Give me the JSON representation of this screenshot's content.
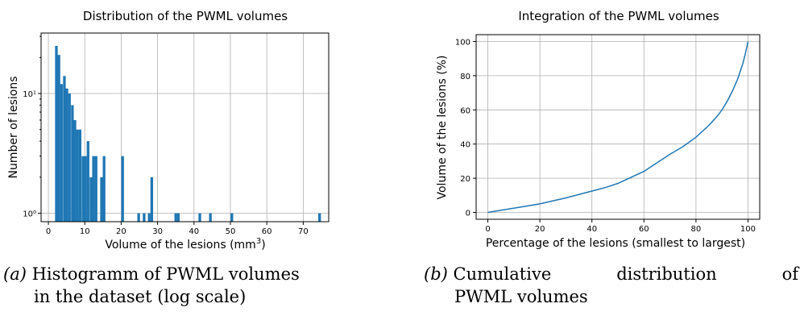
{
  "chart_data": [
    {
      "type": "bar",
      "title": "Distribution of the PWML volumes",
      "xlabel": "Volume of the lesions (mm",
      "xlabel_sup": "3",
      "ylabel": "Number of lesions",
      "yscale": "log",
      "xlim": [
        -2,
        77
      ],
      "ylim": [
        0.85,
        32
      ],
      "x_ticks": [
        0,
        10,
        20,
        30,
        40,
        50,
        60,
        70
      ],
      "x_tick_labels": [
        "0",
        "10",
        "20",
        "30",
        "40",
        "50",
        "60",
        "70"
      ],
      "y_ticks": [
        1,
        10
      ],
      "y_tick_labels": [
        "10⁰",
        "10¹"
      ],
      "grid": true,
      "bin_width": 0.73,
      "bars": [
        {
          "x": 2.2,
          "y": 25
        },
        {
          "x": 2.9,
          "y": 21
        },
        {
          "x": 3.6,
          "y": 12
        },
        {
          "x": 4.4,
          "y": 14
        },
        {
          "x": 5.1,
          "y": 11
        },
        {
          "x": 5.8,
          "y": 10
        },
        {
          "x": 6.6,
          "y": 8
        },
        {
          "x": 7.3,
          "y": 6
        },
        {
          "x": 8.0,
          "y": 5
        },
        {
          "x": 8.7,
          "y": 5
        },
        {
          "x": 9.5,
          "y": 3
        },
        {
          "x": 10.2,
          "y": 3
        },
        {
          "x": 10.9,
          "y": 4
        },
        {
          "x": 11.7,
          "y": 2
        },
        {
          "x": 12.4,
          "y": 3
        },
        {
          "x": 13.1,
          "y": 3
        },
        {
          "x": 14.6,
          "y": 2
        },
        {
          "x": 15.3,
          "y": 3
        },
        {
          "x": 20.4,
          "y": 3
        },
        {
          "x": 24.8,
          "y": 1
        },
        {
          "x": 26.3,
          "y": 1
        },
        {
          "x": 27.7,
          "y": 1
        },
        {
          "x": 28.4,
          "y": 2
        },
        {
          "x": 35.0,
          "y": 1
        },
        {
          "x": 35.7,
          "y": 1
        },
        {
          "x": 41.6,
          "y": 1
        },
        {
          "x": 44.5,
          "y": 1
        },
        {
          "x": 50.4,
          "y": 1
        },
        {
          "x": 74.5,
          "y": 1
        }
      ]
    },
    {
      "type": "line",
      "title": "Integration of the PWML volumes",
      "xlabel": "Percentage of the lesions (smallest to largest)",
      "ylabel": "Volume of the lesions (%)",
      "xlim": [
        -4.5,
        104.5
      ],
      "ylim": [
        -4,
        104
      ],
      "x_ticks": [
        0,
        20,
        40,
        60,
        80,
        100
      ],
      "x_tick_labels": [
        "0",
        "20",
        "40",
        "60",
        "80",
        "100"
      ],
      "y_ticks": [
        0,
        20,
        40,
        60,
        80,
        100
      ],
      "y_tick_labels": [
        "0",
        "20",
        "40",
        "60",
        "80",
        "100"
      ],
      "grid": true,
      "color": "#1f77b4",
      "series": [
        {
          "x": [
            0,
            10,
            20,
            30,
            40,
            45,
            50,
            55,
            60,
            65,
            70,
            75,
            80,
            85,
            88,
            90,
            92,
            94,
            96,
            98,
            99,
            100
          ],
          "y": [
            0,
            2.5,
            5,
            8.5,
            12.5,
            14.5,
            17,
            20.5,
            24,
            29,
            34,
            38.5,
            44,
            51,
            56,
            60,
            65,
            71,
            78,
            87,
            93,
            100
          ]
        }
      ]
    }
  ],
  "captions": {
    "a": {
      "tag": "(a)",
      "line1": "Histogramm of PWML volumes",
      "line2": "in the dataset (log scale)"
    },
    "b": {
      "tag": "(b)",
      "word1": "Cumulative",
      "word2": "distribution",
      "word3": "of",
      "line2": "PWML volumes"
    }
  }
}
